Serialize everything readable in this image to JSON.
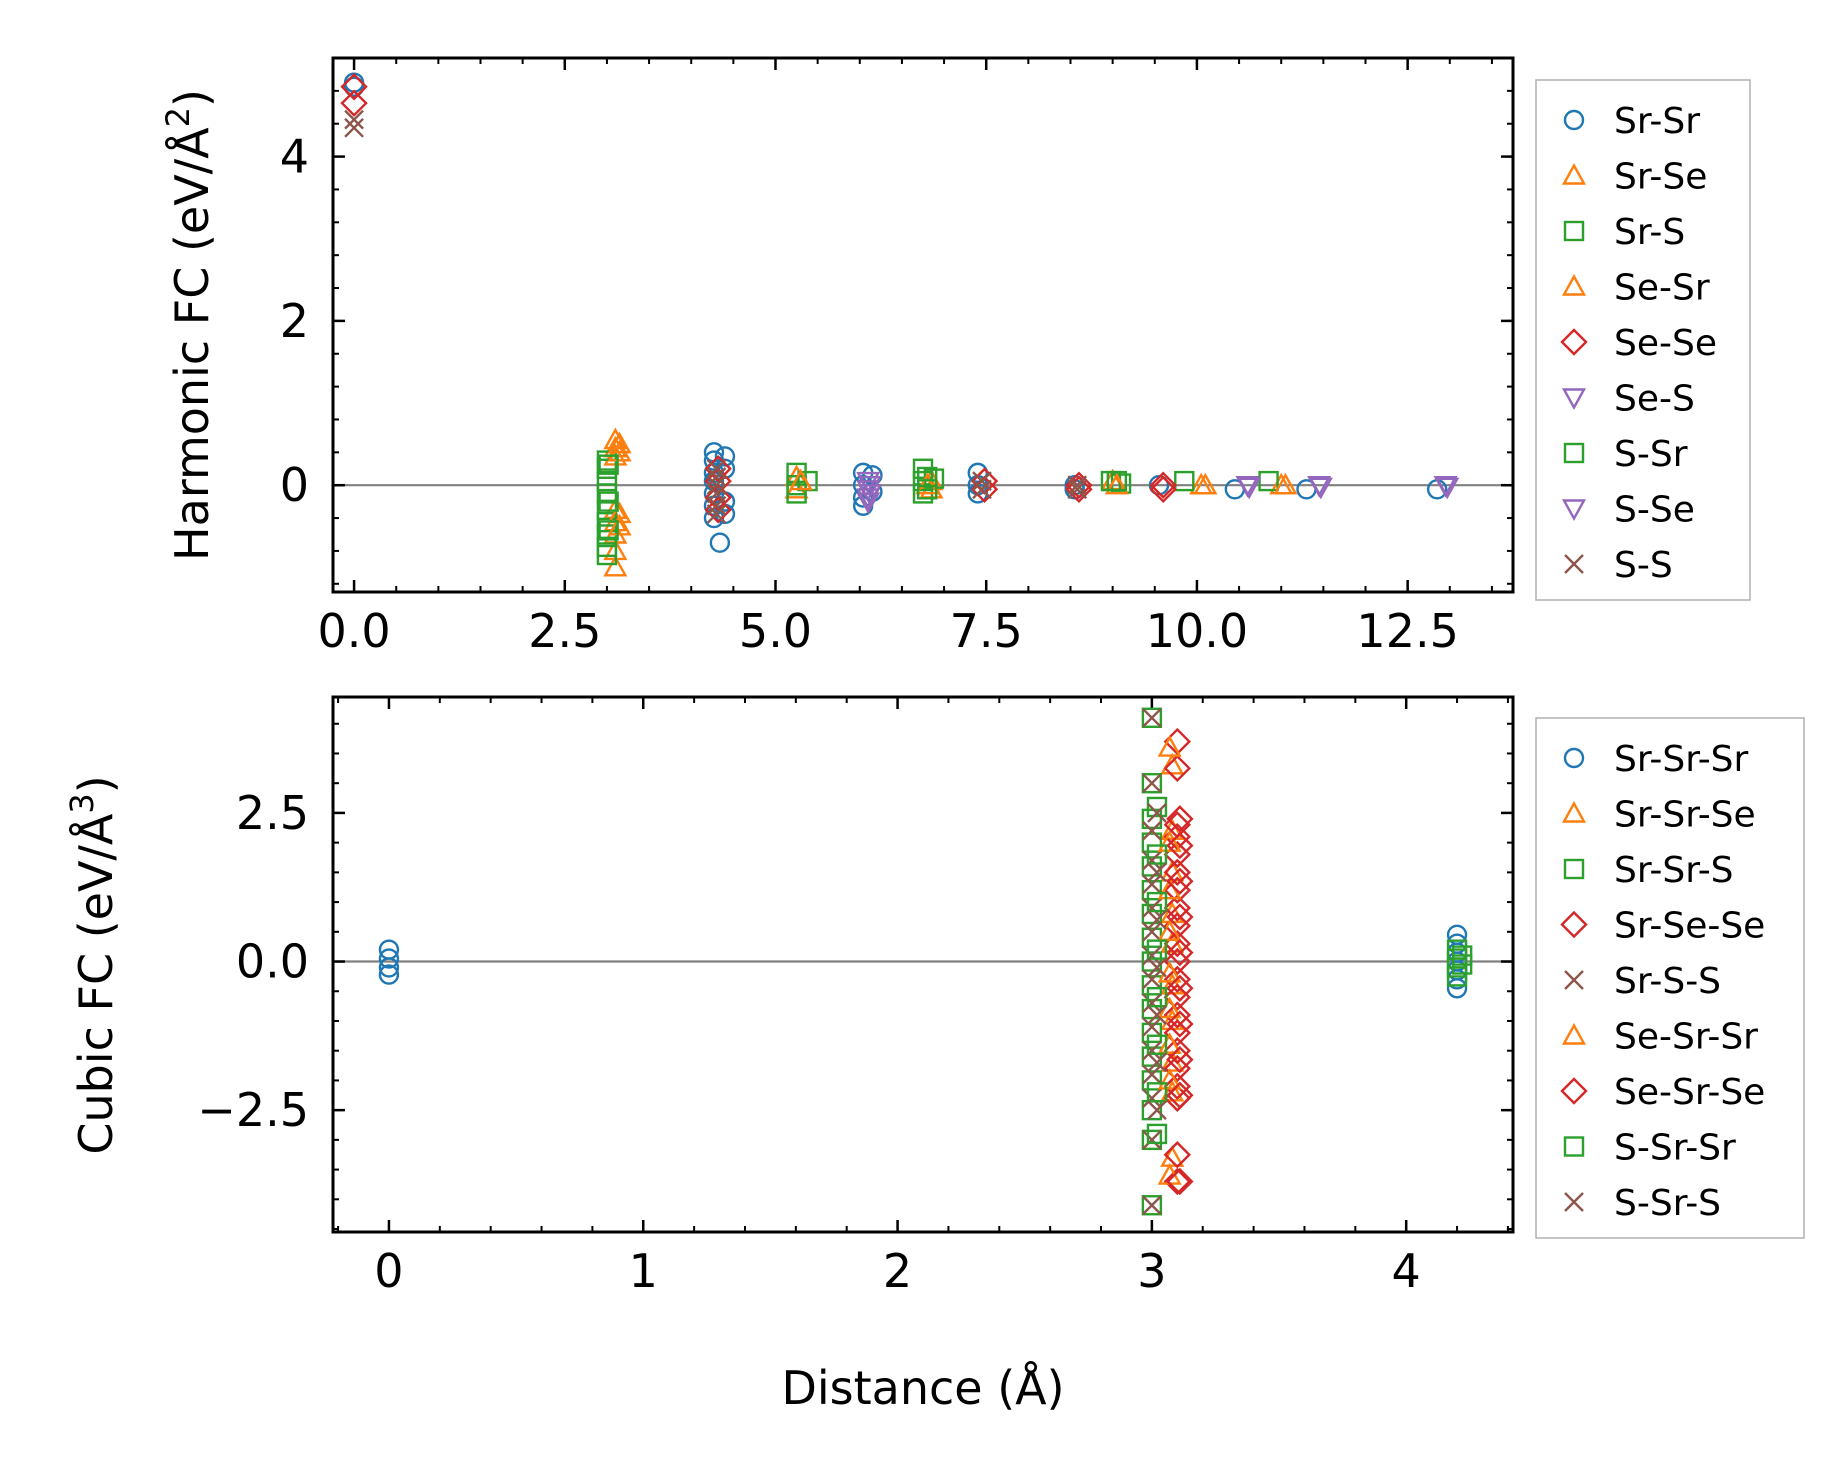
{
  "colors": {
    "blue": "#1f77b4",
    "orange": "#ff7f0e",
    "green": "#2ca02c",
    "red": "#d62728",
    "purple": "#9467bd",
    "brown": "#8c564b",
    "zero_line": "#808080"
  },
  "chart_data": [
    {
      "type": "scatter",
      "id": "harmonic",
      "ylabel": "Harmonic FC (eV/Å²)",
      "ylabel_main": "Harmonic FC (eV/Å",
      "ylabel_sup": "2",
      "ylabel_end": ")",
      "xlabel": "",
      "xlim": [
        -0.25,
        13.75
      ],
      "ylim": [
        -1.3,
        5.2
      ],
      "x_ticks": [
        0.0,
        2.5,
        5.0,
        7.5,
        10.0,
        12.5
      ],
      "x_tick_labels": [
        "0.0",
        "2.5",
        "5.0",
        "7.5",
        "10.0",
        "12.5"
      ],
      "y_ticks": [
        0,
        2,
        4
      ],
      "y_tick_labels": [
        "0",
        "2",
        "4"
      ],
      "zero_line": true,
      "legend_position": "outside-right",
      "series": [
        {
          "name": "Sr-Sr",
          "marker": "circle",
          "color": "#1f77b4",
          "points": [
            [
              0.0,
              4.9
            ],
            [
              0.0,
              4.85
            ],
            [
              4.27,
              0.4
            ],
            [
              4.27,
              0.3
            ],
            [
              4.27,
              0.15
            ],
            [
              4.27,
              0.05
            ],
            [
              4.27,
              -0.1
            ],
            [
              4.27,
              -0.25
            ],
            [
              4.27,
              -0.4
            ],
            [
              4.34,
              -0.7
            ],
            [
              4.4,
              0.35
            ],
            [
              4.4,
              0.2
            ],
            [
              4.4,
              -0.2
            ],
            [
              4.4,
              -0.35
            ],
            [
              6.04,
              0.15
            ],
            [
              6.04,
              0.0
            ],
            [
              6.04,
              -0.15
            ],
            [
              6.04,
              -0.25
            ],
            [
              6.15,
              0.12
            ],
            [
              6.15,
              -0.08
            ],
            [
              7.4,
              0.15
            ],
            [
              7.4,
              0.0
            ],
            [
              7.4,
              -0.1
            ],
            [
              8.55,
              0.0
            ],
            [
              8.55,
              -0.05
            ],
            [
              9.55,
              0.0
            ],
            [
              10.45,
              -0.05
            ],
            [
              11.3,
              -0.05
            ],
            [
              12.85,
              -0.05
            ]
          ]
        },
        {
          "name": "Sr-Se",
          "marker": "triangle-up",
          "color": "#ff7f0e",
          "points": [
            [
              3.1,
              0.55
            ],
            [
              3.1,
              0.45
            ],
            [
              3.1,
              0.35
            ],
            [
              3.1,
              -0.3
            ],
            [
              3.1,
              -0.45
            ],
            [
              3.1,
              -0.6
            ],
            [
              3.1,
              -0.8
            ],
            [
              3.1,
              -1.0
            ],
            [
              5.25,
              0.1
            ],
            [
              5.25,
              -0.05
            ],
            [
              6.85,
              0.05
            ],
            [
              6.85,
              -0.05
            ],
            [
              9.0,
              0.05
            ],
            [
              10.05,
              0.0
            ],
            [
              11.0,
              0.0
            ]
          ]
        },
        {
          "name": "Sr-S",
          "marker": "square",
          "color": "#2ca02c",
          "points": [
            [
              3.0,
              0.3
            ],
            [
              3.0,
              0.2
            ],
            [
              3.0,
              0.05
            ],
            [
              3.0,
              -0.1
            ],
            [
              3.0,
              -0.3
            ],
            [
              3.0,
              -0.45
            ],
            [
              3.0,
              -0.6
            ],
            [
              3.0,
              -0.75
            ],
            [
              3.0,
              -0.85
            ],
            [
              5.25,
              0.15
            ],
            [
              5.25,
              0.0
            ],
            [
              5.25,
              -0.1
            ],
            [
              5.38,
              0.05
            ],
            [
              6.75,
              0.2
            ],
            [
              6.75,
              0.05
            ],
            [
              6.75,
              -0.1
            ],
            [
              6.88,
              0.08
            ],
            [
              8.98,
              0.05
            ],
            [
              9.1,
              0.02
            ],
            [
              9.85,
              0.05
            ],
            [
              10.85,
              0.05
            ]
          ]
        },
        {
          "name": "Se-Sr",
          "marker": "triangle-up",
          "color": "#ff7f0e",
          "points": [
            [
              3.15,
              0.5
            ],
            [
              3.15,
              0.4
            ],
            [
              3.15,
              -0.35
            ],
            [
              3.15,
              -0.5
            ],
            [
              5.3,
              0.05
            ],
            [
              6.8,
              0.0
            ],
            [
              9.05,
              0.0
            ],
            [
              10.1,
              0.0
            ],
            [
              11.05,
              0.0
            ]
          ]
        },
        {
          "name": "Se-Se",
          "marker": "diamond",
          "color": "#d62728",
          "points": [
            [
              0.0,
              4.85
            ],
            [
              0.0,
              4.65
            ],
            [
              4.32,
              0.2
            ],
            [
              4.32,
              0.05
            ],
            [
              4.32,
              -0.15
            ],
            [
              4.32,
              -0.3
            ],
            [
              7.48,
              0.05
            ],
            [
              7.48,
              -0.05
            ],
            [
              8.6,
              0.0
            ],
            [
              8.6,
              -0.05
            ],
            [
              9.6,
              0.0
            ],
            [
              9.6,
              -0.05
            ]
          ]
        },
        {
          "name": "Se-S",
          "marker": "triangle-down",
          "color": "#9467bd",
          "points": [
            [
              6.1,
              0.05
            ],
            [
              6.1,
              -0.05
            ],
            [
              6.1,
              -0.15
            ],
            [
              6.1,
              -0.2
            ],
            [
              10.6,
              0.0
            ],
            [
              11.45,
              0.0
            ],
            [
              12.95,
              0.0
            ]
          ]
        },
        {
          "name": "S-Sr",
          "marker": "square",
          "color": "#2ca02c",
          "points": [
            [
              3.02,
              0.25
            ],
            [
              3.02,
              -0.2
            ],
            [
              3.02,
              -0.55
            ],
            [
              6.8,
              0.1
            ],
            [
              6.8,
              -0.05
            ],
            [
              9.05,
              0.05
            ]
          ]
        },
        {
          "name": "S-Se",
          "marker": "triangle-down",
          "color": "#9467bd",
          "points": [
            [
              6.12,
              0.0
            ],
            [
              6.12,
              -0.1
            ],
            [
              10.62,
              -0.02
            ],
            [
              11.47,
              -0.02
            ],
            [
              12.97,
              -0.02
            ]
          ]
        },
        {
          "name": "S-S",
          "marker": "x",
          "color": "#8c564b",
          "points": [
            [
              0.0,
              4.45
            ],
            [
              0.0,
              4.35
            ],
            [
              4.3,
              0.2
            ],
            [
              4.3,
              0.1
            ],
            [
              4.3,
              0.0
            ],
            [
              4.3,
              -0.1
            ],
            [
              4.3,
              -0.25
            ],
            [
              4.3,
              -0.35
            ],
            [
              7.45,
              0.05
            ],
            [
              7.45,
              -0.05
            ],
            [
              8.58,
              0.0
            ],
            [
              8.58,
              -0.05
            ]
          ]
        }
      ]
    },
    {
      "type": "scatter",
      "id": "cubic",
      "ylabel": "Cubic FC (eV/Å³)",
      "ylabel_main": "Cubic FC (eV/Å",
      "ylabel_sup": "3",
      "ylabel_end": ")",
      "xlabel": "Distance (Å)",
      "xlim": [
        -0.22,
        4.42
      ],
      "ylim": [
        -4.55,
        4.45
      ],
      "x_ticks": [
        0,
        1,
        2,
        3,
        4
      ],
      "x_tick_labels": [
        "0",
        "1",
        "2",
        "3",
        "4"
      ],
      "y_ticks": [
        2.5,
        0.0,
        -2.5
      ],
      "y_tick_labels": [
        "2.5",
        "0.0",
        "−2.5"
      ],
      "zero_line": true,
      "legend_position": "outside-right",
      "series": [
        {
          "name": "Sr-Sr-Sr",
          "marker": "circle",
          "color": "#1f77b4",
          "points": [
            [
              0.0,
              0.2
            ],
            [
              0.0,
              0.05
            ],
            [
              0.0,
              -0.1
            ],
            [
              0.0,
              -0.22
            ],
            [
              4.2,
              0.45
            ],
            [
              4.2,
              0.3
            ],
            [
              4.2,
              0.15
            ],
            [
              4.2,
              0.0
            ],
            [
              4.2,
              -0.15
            ],
            [
              4.2,
              -0.3
            ],
            [
              4.2,
              -0.45
            ]
          ]
        },
        {
          "name": "Sr-Sr-Se",
          "marker": "triangle-up",
          "color": "#ff7f0e",
          "points": [
            [
              3.08,
              3.3
            ],
            [
              3.08,
              2.2
            ],
            [
              3.08,
              1.5
            ],
            [
              3.08,
              0.8
            ],
            [
              3.08,
              0.3
            ],
            [
              3.08,
              -0.4
            ],
            [
              3.08,
              -1.0
            ],
            [
              3.08,
              -1.7
            ],
            [
              3.08,
              -2.2
            ],
            [
              3.08,
              -3.3
            ]
          ]
        },
        {
          "name": "Sr-Sr-S",
          "marker": "square",
          "color": "#2ca02c",
          "points": [
            [
              3.0,
              4.1
            ],
            [
              3.0,
              3.0
            ],
            [
              3.0,
              2.4
            ],
            [
              3.0,
              2.0
            ],
            [
              3.0,
              1.6
            ],
            [
              3.0,
              1.2
            ],
            [
              3.0,
              0.8
            ],
            [
              3.0,
              0.4
            ],
            [
              3.0,
              0.0
            ],
            [
              3.0,
              -0.4
            ],
            [
              3.0,
              -0.8
            ],
            [
              3.0,
              -1.2
            ],
            [
              3.0,
              -1.6
            ],
            [
              3.0,
              -2.0
            ],
            [
              3.0,
              -2.5
            ],
            [
              3.0,
              -3.0
            ],
            [
              3.0,
              -4.1
            ],
            [
              4.2,
              0.2
            ],
            [
              4.2,
              0.05
            ],
            [
              4.2,
              -0.1
            ],
            [
              4.2,
              -0.25
            ]
          ]
        },
        {
          "name": "Sr-Se-Se",
          "marker": "diamond",
          "color": "#d62728",
          "points": [
            [
              3.1,
              3.7
            ],
            [
              3.1,
              3.25
            ],
            [
              3.1,
              2.3
            ],
            [
              3.1,
              2.1
            ],
            [
              3.1,
              1.8
            ],
            [
              3.1,
              1.5
            ],
            [
              3.1,
              1.2
            ],
            [
              3.1,
              0.9
            ],
            [
              3.1,
              0.6
            ],
            [
              3.1,
              0.3
            ],
            [
              3.1,
              0.0
            ],
            [
              3.1,
              -0.3
            ],
            [
              3.1,
              -0.6
            ],
            [
              3.1,
              -0.9
            ],
            [
              3.1,
              -1.2
            ],
            [
              3.1,
              -1.5
            ],
            [
              3.1,
              -1.8
            ],
            [
              3.1,
              -2.1
            ],
            [
              3.1,
              -2.3
            ],
            [
              3.1,
              -3.25
            ],
            [
              3.1,
              -3.7
            ]
          ]
        },
        {
          "name": "Sr-S-S",
          "marker": "x",
          "color": "#8c564b",
          "points": [
            [
              3.0,
              4.1
            ],
            [
              3.0,
              3.0
            ],
            [
              3.0,
              2.2
            ],
            [
              3.0,
              1.7
            ],
            [
              3.0,
              1.3
            ],
            [
              3.0,
              0.9
            ],
            [
              3.0,
              0.5
            ],
            [
              3.0,
              0.1
            ],
            [
              3.0,
              -0.3
            ],
            [
              3.0,
              -0.7
            ],
            [
              3.0,
              -1.1
            ],
            [
              3.0,
              -1.5
            ],
            [
              3.0,
              -1.9
            ],
            [
              3.0,
              -2.3
            ],
            [
              3.0,
              -3.0
            ],
            [
              3.0,
              -4.1
            ]
          ]
        },
        {
          "name": "Se-Sr-Sr",
          "marker": "triangle-up",
          "color": "#ff7f0e",
          "points": [
            [
              3.07,
              3.6
            ],
            [
              3.07,
              2.0
            ],
            [
              3.07,
              1.2
            ],
            [
              3.07,
              0.5
            ],
            [
              3.07,
              -0.2
            ],
            [
              3.07,
              -0.8
            ],
            [
              3.07,
              -1.4
            ],
            [
              3.07,
              -2.0
            ],
            [
              3.07,
              -3.6
            ]
          ]
        },
        {
          "name": "Se-Sr-Se",
          "marker": "diamond",
          "color": "#d62728",
          "points": [
            [
              3.11,
              2.4
            ],
            [
              3.11,
              1.95
            ],
            [
              3.11,
              1.35
            ],
            [
              3.11,
              0.75
            ],
            [
              3.11,
              0.15
            ],
            [
              3.11,
              -0.45
            ],
            [
              3.11,
              -1.05
            ],
            [
              3.11,
              -1.65
            ],
            [
              3.11,
              -2.25
            ],
            [
              3.11,
              -3.7
            ]
          ]
        },
        {
          "name": "S-Sr-Sr",
          "marker": "square",
          "color": "#2ca02c",
          "points": [
            [
              3.02,
              2.6
            ],
            [
              3.02,
              1.8
            ],
            [
              3.02,
              1.0
            ],
            [
              3.02,
              0.2
            ],
            [
              3.02,
              -0.6
            ],
            [
              3.02,
              -1.4
            ],
            [
              3.02,
              -2.2
            ],
            [
              3.02,
              -2.9
            ],
            [
              4.22,
              0.1
            ],
            [
              4.22,
              -0.05
            ]
          ]
        },
        {
          "name": "S-Sr-S",
          "marker": "x",
          "color": "#8c564b",
          "points": [
            [
              3.02,
              2.5
            ],
            [
              3.02,
              1.5
            ],
            [
              3.02,
              0.7
            ],
            [
              3.02,
              -0.1
            ],
            [
              3.02,
              -0.9
            ],
            [
              3.02,
              -1.7
            ],
            [
              3.02,
              -2.5
            ]
          ]
        }
      ]
    }
  ]
}
